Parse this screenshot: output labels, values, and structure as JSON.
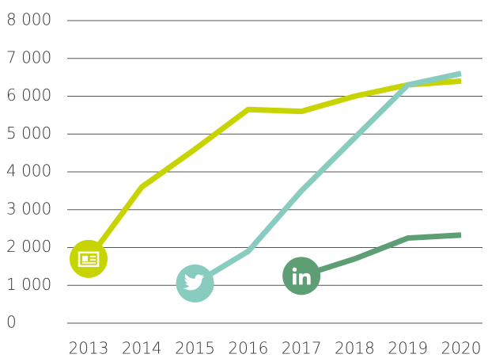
{
  "chart_data": {
    "type": "line",
    "x": [
      2013,
      2014,
      2015,
      2016,
      2017,
      2018,
      2019,
      2020
    ],
    "series": [
      {
        "color": "#c8d400",
        "values": [
          1700,
          3600,
          4600,
          5650,
          5600,
          6000,
          6300,
          6400
        ]
      },
      {
        "color": "#88cbbf",
        "values": [
          null,
          null,
          1050,
          1900,
          3500,
          4900,
          6300,
          6600
        ]
      },
      {
        "color": "#5e9e75",
        "values": [
          null,
          null,
          null,
          null,
          1250,
          1700,
          2250,
          2330
        ]
      }
    ],
    "ylim": [
      0,
      8000
    ],
    "yticks": [
      0,
      {
        "value": 1000,
        "label": "1 000"
      },
      {
        "value": 2000,
        "label": "2 000"
      },
      {
        "value": 3000,
        "label": "3 000"
      },
      {
        "value": 4000,
        "label": "4 000"
      },
      {
        "value": 5000,
        "label": "5 000"
      },
      {
        "value": 6000,
        "label": "6 000"
      },
      {
        "value": 7000,
        "label": "7 000"
      },
      {
        "value": 8000,
        "label": "8 000"
      }
    ],
    "grid": true
  }
}
